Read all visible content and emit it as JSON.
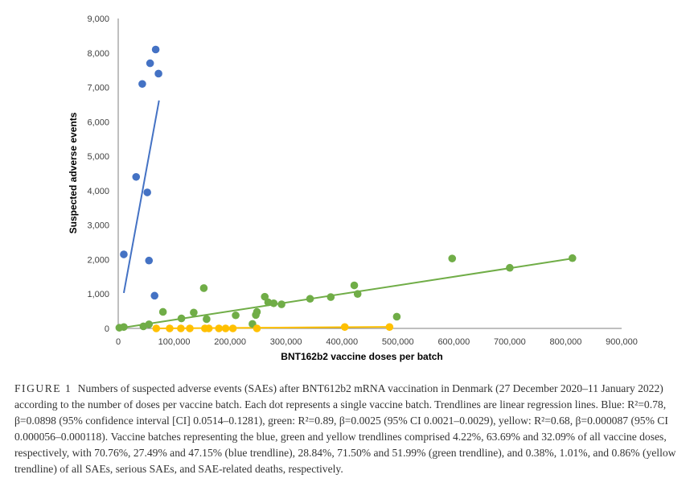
{
  "chart_data": {
    "type": "scatter",
    "title": "",
    "xlabel": "BNT162b2 vaccine doses per batch",
    "ylabel": "Suspected adverse events",
    "xlim": [
      0,
      900000
    ],
    "ylim": [
      0,
      9000
    ],
    "x_ticks": [
      "0",
      "100,000",
      "200,000",
      "300,000",
      "400,000",
      "500,000",
      "600,000",
      "700,000",
      "800,000",
      "900,000"
    ],
    "y_ticks": [
      "0",
      "1,000",
      "2,000",
      "3,000",
      "4,000",
      "5,000",
      "6,000",
      "7,000",
      "8,000",
      "9,000"
    ],
    "grid": false,
    "legend": "none",
    "series": [
      {
        "color": "#4472C4",
        "points": [
          [
            10000,
            2150
          ],
          [
            32000,
            4400
          ],
          [
            43000,
            7100
          ],
          [
            52000,
            3950
          ],
          [
            55000,
            1970
          ],
          [
            57000,
            7700
          ],
          [
            65000,
            950
          ],
          [
            67000,
            8100
          ],
          [
            72000,
            7400
          ]
        ],
        "trendline": [
          [
            10000,
            1030
          ],
          [
            73000,
            6620
          ]
        ]
      },
      {
        "color": "#70AD47",
        "points": [
          [
            2000,
            20
          ],
          [
            10000,
            40
          ],
          [
            45000,
            60
          ],
          [
            55000,
            120
          ],
          [
            80000,
            480
          ],
          [
            113000,
            290
          ],
          [
            135000,
            460
          ],
          [
            153000,
            1170
          ],
          [
            158000,
            270
          ],
          [
            210000,
            380
          ],
          [
            240000,
            130
          ],
          [
            246000,
            390
          ],
          [
            248000,
            480
          ],
          [
            262000,
            920
          ],
          [
            268000,
            760
          ],
          [
            278000,
            730
          ],
          [
            292000,
            700
          ],
          [
            343000,
            860
          ],
          [
            380000,
            910
          ],
          [
            422000,
            1250
          ],
          [
            428000,
            1000
          ],
          [
            498000,
            340
          ],
          [
            597000,
            2030
          ],
          [
            700000,
            1760
          ],
          [
            812000,
            2040
          ]
        ],
        "trendline": [
          [
            0,
            0
          ],
          [
            812000,
            2030
          ]
        ]
      },
      {
        "color": "#FFC000",
        "points": [
          [
            68000,
            0
          ],
          [
            92000,
            0
          ],
          [
            112000,
            0
          ],
          [
            128000,
            0
          ],
          [
            155000,
            0
          ],
          [
            162000,
            0
          ],
          [
            180000,
            0
          ],
          [
            192000,
            0
          ],
          [
            205000,
            0
          ],
          [
            248000,
            0
          ],
          [
            405000,
            40
          ],
          [
            485000,
            40
          ]
        ],
        "trendline": [
          [
            68000,
            0
          ],
          [
            485000,
            45
          ]
        ]
      }
    ]
  },
  "caption": {
    "label": "FIGURE 1",
    "text": "Numbers of suspected adverse events (SAEs) after BNT612b2 mRNA vaccination in Denmark (27 December 2020–11 January 2022) according to the number of doses per vaccine batch. Each dot represents a single vaccine batch. Trendlines are linear regression lines. Blue: R²=0.78, β=0.0898 (95% confidence interval [CI] 0.0514–0.1281), green: R²=0.89, β=0.0025 (95% CI 0.0021–0.0029), yellow: R²=0.68, β=0.000087 (95% CI 0.000056–0.000118). Vaccine batches representing the blue, green and yellow trendlines comprised 4.22%, 63.69% and 32.09% of all vaccine doses, respectively, with 70.76%, 27.49% and 47.15% (blue trendline), 28.84%, 71.50% and 51.99% (green trendline), and 0.38%, 1.01%, and 0.86% (yellow trendline) of all SAEs, serious SAEs, and SAE-related deaths, respectively."
  }
}
